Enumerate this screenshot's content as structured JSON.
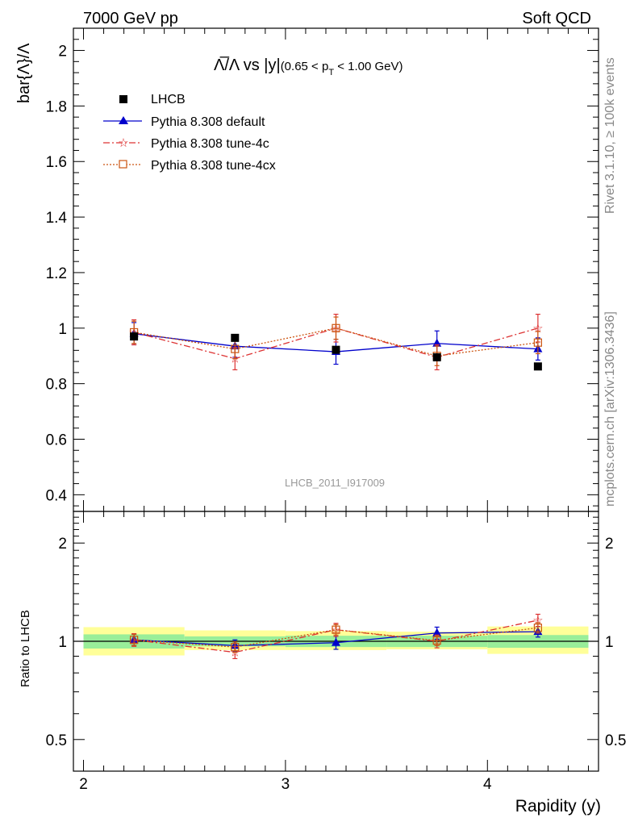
{
  "header": {
    "left": "7000 GeV pp",
    "right": "Soft QCD"
  },
  "side_labels": {
    "rivet": "Rivet 3.1.10, ≥ 100k events",
    "mcplots": "mcplots.cern.ch [arXiv:1306.3436]"
  },
  "analysis_label": "LHCB_2011_I917009",
  "colors": {
    "data": "#000000",
    "default": "#0000cc",
    "tune4c": "#dd3333",
    "tune4cx": "#cc5511",
    "band_inner": "#99ee99",
    "band_outer": "#ffff99"
  },
  "chart_data": [
    {
      "id": "main",
      "type": "scatter",
      "title": "Λ̅/Λ vs |y|",
      "title_suffix": "(0.65 < p",
      "title_sub": "T",
      "title_tail": " < 1.00 GeV)",
      "ylabel": "bar{Λ}/Λ",
      "xlim": [
        1.95,
        4.55
      ],
      "ylim": [
        0.34,
        2.08
      ],
      "yticks": [
        0.4,
        0.6,
        0.8,
        1.0,
        1.2,
        1.4,
        1.6,
        1.8,
        2.0
      ],
      "ytick_labels": [
        "0.4",
        "0.6",
        "0.8",
        "1",
        "1.2",
        "1.4",
        "1.6",
        "1.8",
        "2"
      ],
      "legend": [
        "LHCB",
        "Pythia 8.308 default",
        "Pythia 8.308 tune-4c",
        "Pythia 8.308 tune-4cx"
      ],
      "legend_position": "top-left",
      "x": [
        2.25,
        2.75,
        3.25,
        3.75,
        4.25
      ],
      "series": [
        {
          "name": "LHCB",
          "values": [
            0.97,
            0.965,
            0.922,
            0.895,
            0.862
          ],
          "errors": [
            0,
            0,
            0,
            0,
            0
          ]
        },
        {
          "name": "Pythia 8.308 default",
          "values": [
            0.98,
            0.935,
            0.915,
            0.945,
            0.925
          ],
          "errors": [
            0.04,
            0.04,
            0.045,
            0.045,
            0.04
          ]
        },
        {
          "name": "Pythia 8.308 tune-4c",
          "values": [
            0.985,
            0.89,
            1.0,
            0.895,
            1.0
          ],
          "errors": [
            0.045,
            0.04,
            0.05,
            0.045,
            0.05
          ]
        },
        {
          "name": "Pythia 8.308 tune-4cx",
          "values": [
            0.985,
            0.925,
            1.0,
            0.9,
            0.948
          ],
          "errors": [
            0.04,
            0.035,
            0.04,
            0.035,
            0.04
          ]
        }
      ]
    },
    {
      "id": "ratio",
      "type": "scatter",
      "ylabel": "Ratio to LHCB",
      "xlabel": "Rapidity (y)",
      "xlim": [
        1.95,
        4.55
      ],
      "ylim": [
        0.4,
        2.5
      ],
      "yticks": [
        0.5,
        1.0,
        2.0
      ],
      "ytick_labels": [
        "0.5",
        "1",
        "2"
      ],
      "xticks": [
        2,
        3,
        4
      ],
      "xtick_labels": [
        "2",
        "3",
        "4"
      ],
      "bins": [
        [
          2.0,
          2.5
        ],
        [
          2.5,
          3.0
        ],
        [
          3.0,
          3.5
        ],
        [
          3.5,
          4.0
        ],
        [
          4.0,
          4.5
        ]
      ],
      "band_inner": [
        [
          0.95,
          1.05
        ],
        [
          0.965,
          1.035
        ],
        [
          0.96,
          1.04
        ],
        [
          0.96,
          1.04
        ],
        [
          0.955,
          1.045
        ]
      ],
      "band_outer": [
        [
          0.905,
          1.105
        ],
        [
          0.94,
          1.08
        ],
        [
          0.94,
          1.075
        ],
        [
          0.945,
          1.07
        ],
        [
          0.915,
          1.11
        ]
      ],
      "x": [
        2.25,
        2.75,
        3.25,
        3.75,
        4.25
      ],
      "series": [
        {
          "name": "Pythia 8.308 default",
          "values": [
            1.01,
            0.97,
            0.99,
            1.06,
            1.07
          ],
          "errors": [
            0.04,
            0.04,
            0.045,
            0.045,
            0.04
          ]
        },
        {
          "name": "Pythia 8.308 tune-4c",
          "values": [
            1.01,
            0.925,
            1.085,
            1.0,
            1.16
          ],
          "errors": [
            0.045,
            0.04,
            0.05,
            0.045,
            0.05
          ]
        },
        {
          "name": "Pythia 8.308 tune-4cx",
          "values": [
            1.01,
            0.96,
            1.085,
            1.005,
            1.1
          ],
          "errors": [
            0.04,
            0.035,
            0.04,
            0.035,
            0.04
          ]
        }
      ]
    }
  ]
}
